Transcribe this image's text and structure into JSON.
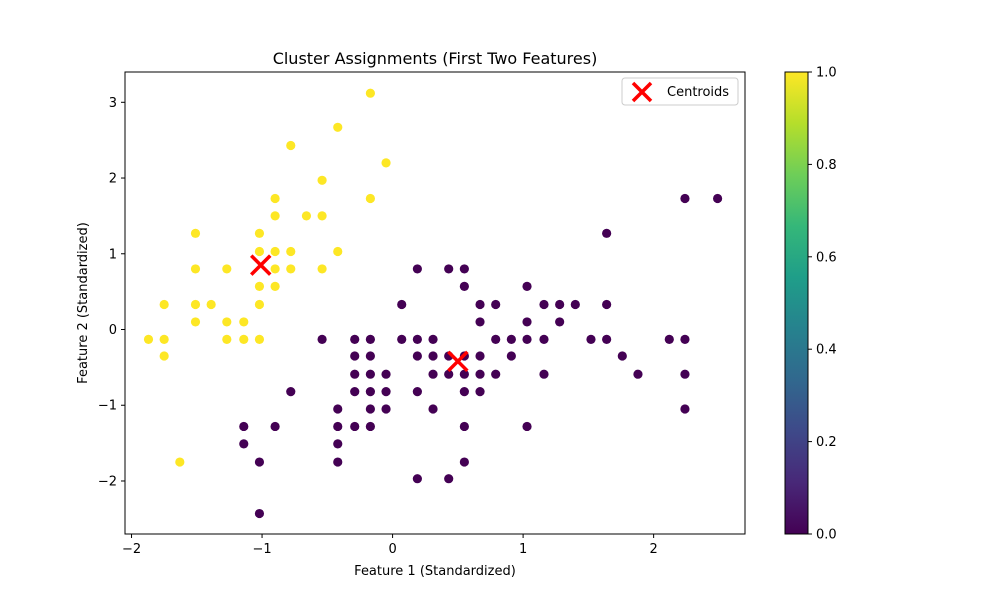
{
  "chart_data": {
    "type": "scatter",
    "title": "Cluster Assignments (First Two Features)",
    "xlabel": "Feature 1 (Standardized)",
    "ylabel": "Feature 2 (Standardized)",
    "xlim": [
      -2.05,
      2.7
    ],
    "ylim": [
      -2.7,
      3.4
    ],
    "xticks": [
      {
        "value": -2,
        "label": "−2"
      },
      {
        "value": -1,
        "label": "−1"
      },
      {
        "value": 0,
        "label": "0"
      },
      {
        "value": 1,
        "label": "1"
      },
      {
        "value": 2,
        "label": "2"
      }
    ],
    "yticks": [
      {
        "value": -2,
        "label": "−2"
      },
      {
        "value": -1,
        "label": "−1"
      },
      {
        "value": 0,
        "label": "0"
      },
      {
        "value": 1,
        "label": "1"
      },
      {
        "value": 2,
        "label": "2"
      },
      {
        "value": 3,
        "label": "3"
      }
    ],
    "grid": false,
    "legend_position": "top-right",
    "series": [
      {
        "cluster": 1,
        "color": "#fde725",
        "points": [
          [
            -1.87,
            -0.13
          ],
          [
            -1.75,
            0.33
          ],
          [
            -1.75,
            -0.13
          ],
          [
            -1.75,
            -0.35
          ],
          [
            -1.63,
            -1.75
          ],
          [
            -1.51,
            1.27
          ],
          [
            -1.51,
            0.8
          ],
          [
            -1.51,
            0.33
          ],
          [
            -1.51,
            0.1
          ],
          [
            -1.39,
            0.33
          ],
          [
            -1.27,
            0.8
          ],
          [
            -1.27,
            0.1
          ],
          [
            -1.27,
            -0.13
          ],
          [
            -1.14,
            0.1
          ],
          [
            -1.14,
            -0.13
          ],
          [
            -1.02,
            1.27
          ],
          [
            -1.02,
            1.03
          ],
          [
            -1.02,
            0.57
          ],
          [
            -1.02,
            0.33
          ],
          [
            -1.02,
            -0.13
          ],
          [
            -0.9,
            1.73
          ],
          [
            -0.9,
            1.5
          ],
          [
            -0.9,
            1.03
          ],
          [
            -0.9,
            0.8
          ],
          [
            -0.9,
            0.57
          ],
          [
            -0.78,
            2.43
          ],
          [
            -0.78,
            1.03
          ],
          [
            -0.78,
            0.8
          ],
          [
            -0.66,
            1.5
          ],
          [
            -0.54,
            1.97
          ],
          [
            -0.54,
            1.5
          ],
          [
            -0.54,
            0.8
          ],
          [
            -0.42,
            2.67
          ],
          [
            -0.42,
            1.03
          ],
          [
            -0.17,
            3.12
          ],
          [
            -0.17,
            1.73
          ],
          [
            -0.05,
            2.2
          ]
        ]
      },
      {
        "cluster": 0,
        "color": "#440154",
        "points": [
          [
            -1.02,
            -2.43
          ],
          [
            -1.02,
            -1.75
          ],
          [
            -1.14,
            -1.28
          ],
          [
            -1.14,
            -1.51
          ],
          [
            -0.9,
            -1.28
          ],
          [
            -0.78,
            -0.82
          ],
          [
            -0.54,
            -0.13
          ],
          [
            -0.42,
            -1.05
          ],
          [
            -0.42,
            -1.28
          ],
          [
            -0.42,
            -1.51
          ],
          [
            -0.42,
            -1.75
          ],
          [
            -0.29,
            -0.13
          ],
          [
            -0.29,
            -0.35
          ],
          [
            -0.29,
            -0.59
          ],
          [
            -0.29,
            -0.82
          ],
          [
            -0.29,
            -1.28
          ],
          [
            -0.17,
            -0.13
          ],
          [
            -0.17,
            -0.35
          ],
          [
            -0.17,
            -0.59
          ],
          [
            -0.17,
            -0.82
          ],
          [
            -0.17,
            -1.05
          ],
          [
            -0.17,
            -1.28
          ],
          [
            -0.05,
            -0.59
          ],
          [
            -0.05,
            -0.82
          ],
          [
            -0.05,
            -1.05
          ],
          [
            0.07,
            0.33
          ],
          [
            0.07,
            -0.13
          ],
          [
            0.19,
            0.8
          ],
          [
            0.19,
            -0.13
          ],
          [
            0.19,
            -0.35
          ],
          [
            0.19,
            -0.82
          ],
          [
            0.19,
            -1.97
          ],
          [
            0.31,
            -0.13
          ],
          [
            0.31,
            -0.35
          ],
          [
            0.31,
            -0.59
          ],
          [
            0.31,
            -1.05
          ],
          [
            0.43,
            0.8
          ],
          [
            0.43,
            -0.35
          ],
          [
            0.43,
            -0.59
          ],
          [
            0.43,
            -1.97
          ],
          [
            0.55,
            0.8
          ],
          [
            0.55,
            0.57
          ],
          [
            0.55,
            -0.35
          ],
          [
            0.55,
            -0.59
          ],
          [
            0.55,
            -0.82
          ],
          [
            0.55,
            -1.28
          ],
          [
            0.55,
            -1.75
          ],
          [
            0.67,
            0.33
          ],
          [
            0.67,
            0.1
          ],
          [
            0.67,
            -0.35
          ],
          [
            0.67,
            -0.59
          ],
          [
            0.67,
            -0.82
          ],
          [
            0.79,
            0.33
          ],
          [
            0.79,
            -0.13
          ],
          [
            0.79,
            -0.59
          ],
          [
            0.91,
            -0.13
          ],
          [
            0.91,
            -0.35
          ],
          [
            1.03,
            0.57
          ],
          [
            1.03,
            0.1
          ],
          [
            1.03,
            -0.13
          ],
          [
            1.03,
            -1.28
          ],
          [
            1.16,
            0.33
          ],
          [
            1.16,
            -0.13
          ],
          [
            1.16,
            -0.59
          ],
          [
            1.28,
            0.33
          ],
          [
            1.28,
            0.1
          ],
          [
            1.4,
            0.33
          ],
          [
            1.52,
            -0.13
          ],
          [
            1.64,
            1.27
          ],
          [
            1.64,
            0.33
          ],
          [
            1.64,
            -0.13
          ],
          [
            1.76,
            -0.35
          ],
          [
            1.88,
            -0.59
          ],
          [
            2.12,
            -0.13
          ],
          [
            2.24,
            1.73
          ],
          [
            2.24,
            -0.13
          ],
          [
            2.24,
            -0.59
          ],
          [
            2.24,
            -1.05
          ],
          [
            2.49,
            1.73
          ]
        ]
      }
    ],
    "centroids": {
      "name": "Centroids",
      "color": "#ff0000",
      "marker": "x",
      "points": [
        [
          -1.01,
          0.85
        ],
        [
          0.5,
          -0.42
        ]
      ]
    },
    "colorbar": {
      "colormap": "viridis",
      "min": 0.0,
      "max": 1.0,
      "ticks": [
        {
          "value": 0.0,
          "label": "0.0"
        },
        {
          "value": 0.2,
          "label": "0.2"
        },
        {
          "value": 0.4,
          "label": "0.4"
        },
        {
          "value": 0.6,
          "label": "0.6"
        },
        {
          "value": 0.8,
          "label": "0.8"
        },
        {
          "value": 1.0,
          "label": "1.0"
        }
      ],
      "gradient_stops": [
        "#440154",
        "#482878",
        "#3e4989",
        "#31688e",
        "#26828e",
        "#1f9e89",
        "#35b779",
        "#6ece58",
        "#b5de2b",
        "#fde725"
      ]
    }
  }
}
